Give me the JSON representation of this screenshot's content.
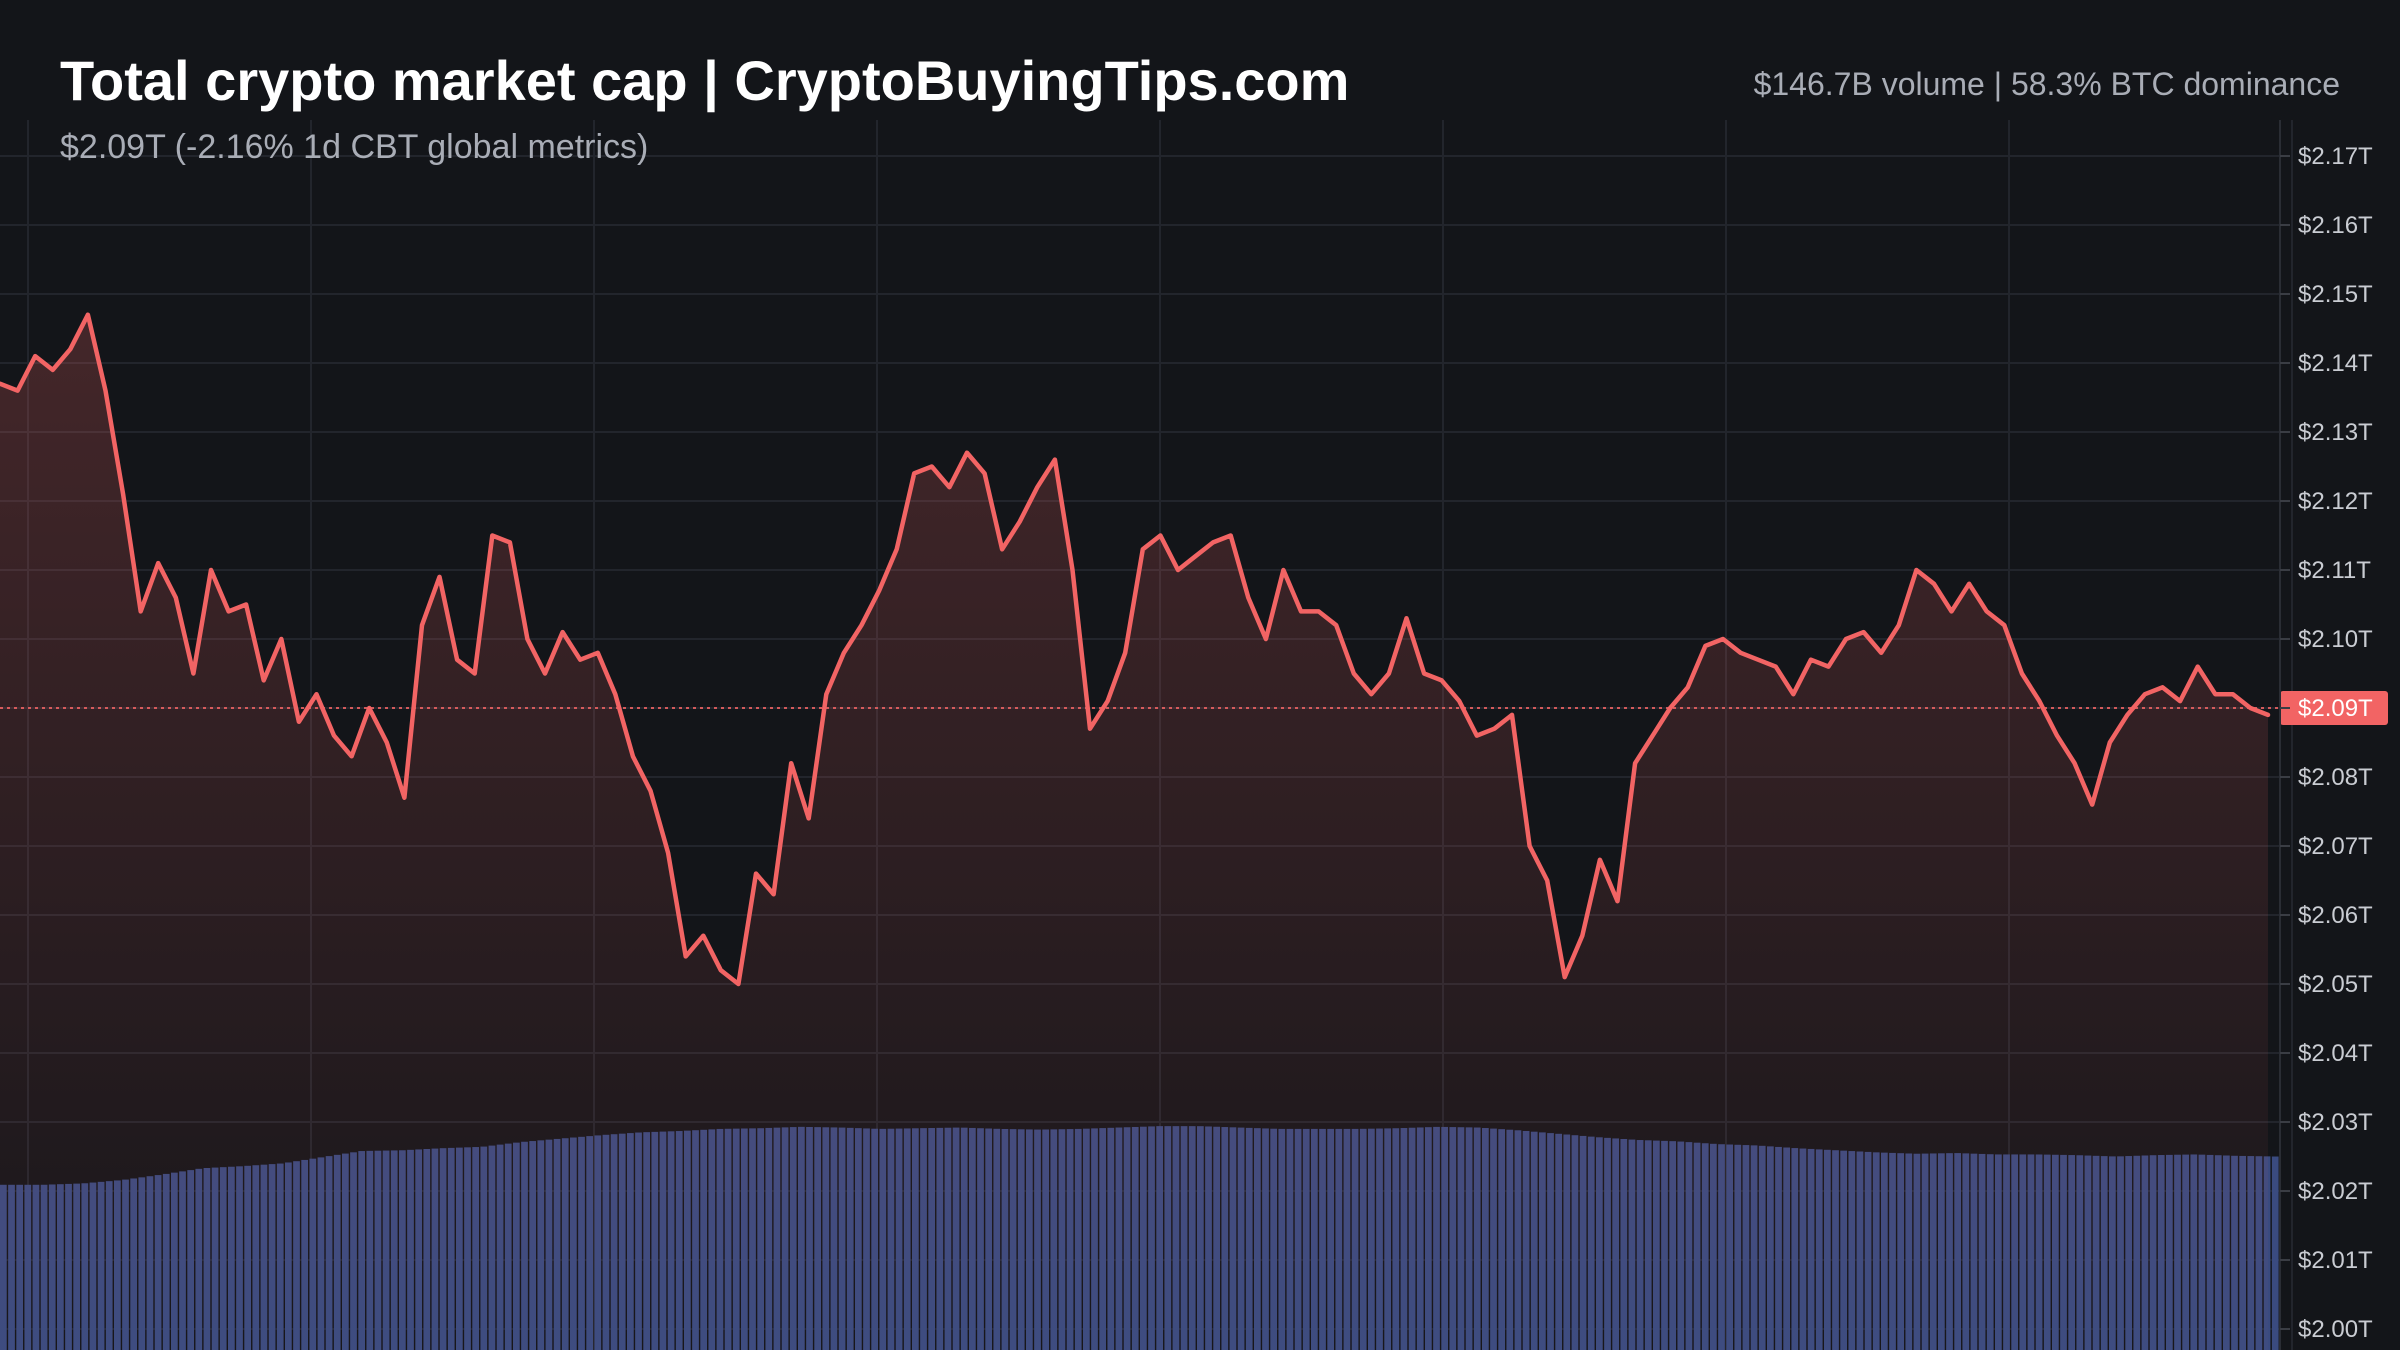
{
  "header": {
    "title": "Total crypto market cap | CryptoBuyingTips.com",
    "subtitle": "$2.09T (-2.16% 1d CBT global metrics)",
    "stats": "$146.7B volume | 58.3% BTC dominance"
  },
  "colors": {
    "background": "#131519",
    "line": "#f26464",
    "volume": "#3a4b80",
    "grid": "#22252c",
    "tag": "#f26464"
  },
  "chart_data": {
    "type": "line",
    "title": "Total crypto market cap | CryptoBuyingTips.com",
    "ylim": [
      2.0,
      2.175
    ],
    "y_tick_labels": [
      "$2.17T",
      "$2.16T",
      "$2.15T",
      "$2.14T",
      "$2.13T",
      "$2.12T",
      "$2.11T",
      "$2.10T",
      "$2.09T",
      "$2.08T",
      "$2.07T",
      "$2.06T",
      "$2.05T",
      "$2.04T",
      "$2.03T",
      "$2.02T",
      "$2.01T",
      "$2.00T"
    ],
    "y_tick_values": [
      2.17,
      2.16,
      2.15,
      2.14,
      2.13,
      2.12,
      2.11,
      2.1,
      2.09,
      2.08,
      2.07,
      2.06,
      2.05,
      2.04,
      2.03,
      2.02,
      2.01,
      2.0
    ],
    "current_value": 2.09,
    "current_label": "$2.09T",
    "grid": true,
    "series": [
      {
        "values": [
          2.137,
          2.136,
          2.141,
          2.139,
          2.142,
          2.147,
          2.136,
          2.121,
          2.104,
          2.111,
          2.106,
          2.095,
          2.11,
          2.104,
          2.105,
          2.094,
          2.1,
          2.088,
          2.092,
          2.086,
          2.083,
          2.09,
          2.085,
          2.077,
          2.102,
          2.109,
          2.097,
          2.095,
          2.115,
          2.114,
          2.1,
          2.095,
          2.101,
          2.097,
          2.098,
          2.092,
          2.083,
          2.078,
          2.069,
          2.054,
          2.057,
          2.052,
          2.05,
          2.066,
          2.063,
          2.082,
          2.074,
          2.092,
          2.098,
          2.102,
          2.107,
          2.113,
          2.124,
          2.125,
          2.122,
          2.127,
          2.124,
          2.113,
          2.117,
          2.122,
          2.126,
          2.11,
          2.087,
          2.091,
          2.098,
          2.113,
          2.115,
          2.11,
          2.112,
          2.114,
          2.115,
          2.106,
          2.1,
          2.11,
          2.104,
          2.104,
          2.102,
          2.095,
          2.092,
          2.095,
          2.103,
          2.095,
          2.094,
          2.091,
          2.086,
          2.087,
          2.089,
          2.07,
          2.065,
          2.051,
          2.057,
          2.068,
          2.062,
          2.082,
          2.086,
          2.09,
          2.093,
          2.099,
          2.1,
          2.098,
          2.097,
          2.096,
          2.092,
          2.097,
          2.096,
          2.1,
          2.101,
          2.098,
          2.102,
          2.11,
          2.108,
          2.104,
          2.108,
          2.104,
          2.102,
          2.095,
          2.091,
          2.086,
          2.082,
          2.076,
          2.085,
          2.089,
          2.092,
          2.093,
          2.091,
          2.096,
          2.092,
          2.092,
          2.09,
          2.089
        ]
      }
    ],
    "volume_series": {
      "values": [
        2.0209,
        2.0209,
        2.0211,
        2.0216,
        2.0224,
        2.0233,
        2.0236,
        2.024,
        2.0249,
        2.0258,
        2.0259,
        2.0262,
        2.0264,
        2.0271,
        2.0276,
        2.0281,
        2.0285,
        2.0287,
        2.029,
        2.0291,
        2.0293,
        2.0292,
        2.029,
        2.0291,
        2.0292,
        2.029,
        2.0289,
        2.029,
        2.0292,
        2.0294,
        2.0294,
        2.0292,
        2.029,
        2.029,
        2.029,
        2.0291,
        2.0293,
        2.0292,
        2.0288,
        2.0283,
        2.0278,
        2.0274,
        2.0272,
        2.0268,
        2.0266,
        2.0262,
        2.0259,
        2.0256,
        2.0254,
        2.0255,
        2.0253,
        2.0253,
        2.0252,
        2.025,
        2.0252,
        2.0253,
        2.0251,
        2.025
      ]
    }
  }
}
